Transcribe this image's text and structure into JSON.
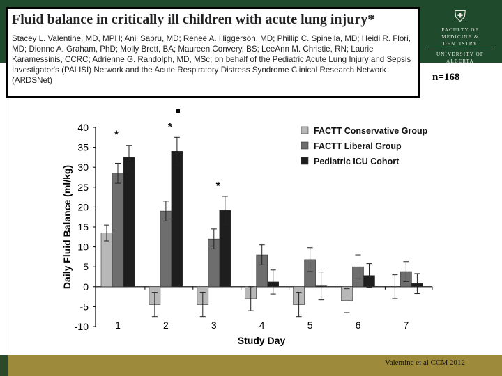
{
  "citation": {
    "title": "Fluid balance in critically ill children with acute lung injury*",
    "authors": "Stacey L. Valentine, MD, MPH; Anil Sapru, MD; Renee A. Higgerson, MD; Phillip C. Spinella, MD; Heidi R. Flori, MD; Dionne A. Graham, PhD; Molly Brett, BA; Maureen Convery, BS; LeeAnn M. Christie, RN; Laurie Karamessinis, CCRC; Adrienne G. Randolph, MD, MSc; on behalf of the Pediatric Acute Lung Injury and Sepsis Investigator's (PALISI) Network and the Acute Respiratory Distress Syndrome Clinical Research Network (ARDSNet)"
  },
  "crest": {
    "line1": "FACULTY OF",
    "line2": "MEDICINE & DENTISTRY",
    "line3": "UNIVERSITY OF ALBERTA"
  },
  "n_label": "n=168",
  "footer": "Valentine et al CCM 2012",
  "colors": {
    "top_band": "#1f4b2c",
    "bottom_band": "#9d8a3a",
    "series": [
      "#b8b8b8",
      "#6e6e6e",
      "#1e1e1e"
    ]
  },
  "chart_data": {
    "type": "bar",
    "xlabel": "Study Day",
    "ylabel": "Daily Fluid Balance (ml/kg)",
    "categories": [
      "1",
      "2",
      "3",
      "4",
      "5",
      "6",
      "7"
    ],
    "ylim": [
      -10,
      40
    ],
    "yticks": [
      -10,
      -5,
      0,
      5,
      10,
      15,
      20,
      25,
      30,
      35,
      40
    ],
    "series": [
      {
        "name": "FACTT Conservative Group",
        "values": [
          13.5,
          -4.5,
          -4.5,
          -3,
          -4.5,
          -3.5,
          0
        ],
        "errors": [
          2,
          3,
          3,
          3,
          3,
          3,
          3
        ]
      },
      {
        "name": "FACTT Liberal Group",
        "values": [
          28.5,
          19,
          12,
          8,
          6.8,
          5,
          3.8
        ],
        "errors": [
          2.5,
          2.5,
          2.5,
          2.5,
          3,
          3,
          2.5
        ]
      },
      {
        "name": "Pediatric ICU Cohort",
        "values": [
          32.5,
          34,
          19.2,
          1.2,
          0.2,
          2.8,
          0.8
        ],
        "errors": [
          3,
          3.5,
          3.5,
          3,
          3.5,
          3,
          2.5
        ]
      }
    ],
    "significance": [
      {
        "day": "1",
        "label": "*"
      },
      {
        "day": "2",
        "label": "*"
      },
      {
        "day": "3",
        "label": "*"
      }
    ],
    "legend_position": "top-right"
  }
}
